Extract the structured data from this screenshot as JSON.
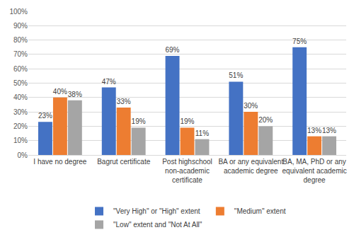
{
  "chart_data": {
    "type": "bar",
    "categories": [
      "I have no degree",
      "Bagrut certificate",
      "Post highschool non-academic certificate",
      "BA or any equivalent academic degree",
      "BA, MA, PhD or any equivalent academic degree"
    ],
    "series": [
      {
        "name": "\"Very High\" or \"High\" extent",
        "color": "#4472c4",
        "values": [
          23,
          47,
          69,
          51,
          75
        ],
        "value_labels": [
          "23%",
          "47%",
          "69%",
          "51%",
          "75%"
        ]
      },
      {
        "name": "\"Medium\" extent",
        "color": "#ed7d31",
        "values": [
          40,
          33,
          19,
          30,
          13
        ],
        "value_labels": [
          "40%",
          "33%",
          "19%",
          "30%",
          "13%"
        ]
      },
      {
        "name": "\"Low\" extent and \"Not At All\"",
        "color": "#a5a5a5",
        "values": [
          38,
          19,
          11,
          20,
          13
        ],
        "value_labels": [
          "38%",
          "19%",
          "11%",
          "20%",
          "13%"
        ]
      }
    ],
    "ylim": [
      0,
      100
    ],
    "yticks": [
      {
        "value": 0,
        "label": "0%"
      },
      {
        "value": 10,
        "label": "10%"
      },
      {
        "value": 20,
        "label": "20%"
      },
      {
        "value": 30,
        "label": "30%"
      },
      {
        "value": 40,
        "label": "40%"
      },
      {
        "value": 50,
        "label": "50%"
      },
      {
        "value": 60,
        "label": "60%"
      },
      {
        "value": 70,
        "label": "70%"
      },
      {
        "value": 80,
        "label": "80%"
      },
      {
        "value": 90,
        "label": "90%"
      },
      {
        "value": 100,
        "label": "100%"
      }
    ],
    "grid": true,
    "legend": "bottom",
    "data_labels": true
  }
}
